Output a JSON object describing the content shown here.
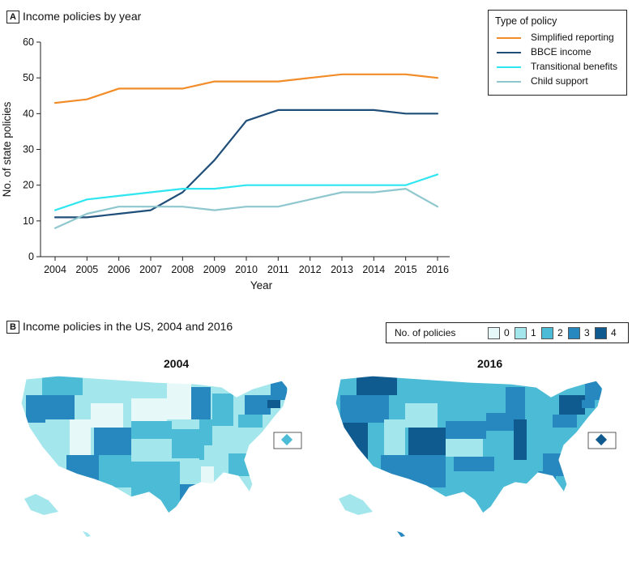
{
  "panel_a": {
    "letter": "A",
    "title": "Income policies by year"
  },
  "panel_b": {
    "letter": "B",
    "title": "Income policies in the US, 2004 and 2016"
  },
  "chart_data": {
    "type": "line",
    "title": "Income policies by year",
    "xlabel": "Year",
    "ylabel": "No. of state policies",
    "x": [
      2004,
      2005,
      2006,
      2007,
      2008,
      2009,
      2010,
      2011,
      2012,
      2013,
      2014,
      2015,
      2016
    ],
    "ylim": [
      0,
      60
    ],
    "yticks": [
      0,
      10,
      20,
      30,
      40,
      50,
      60
    ],
    "legend_title": "Type of policy",
    "legend_position": "top-right",
    "grid": false,
    "series": [
      {
        "name": "Simplified reporting",
        "color": "#F28C28",
        "values": [
          43,
          44,
          47,
          47,
          47,
          49,
          49,
          49,
          50,
          51,
          51,
          51,
          50
        ]
      },
      {
        "name": "BBCE income",
        "color": "#1F4E79",
        "values": [
          11,
          11,
          12,
          13,
          18,
          27,
          38,
          41,
          41,
          41,
          41,
          40,
          40
        ]
      },
      {
        "name": "Transitional benefits",
        "color": "#2FE6F0",
        "values": [
          13,
          16,
          17,
          18,
          19,
          19,
          20,
          20,
          20,
          20,
          20,
          20,
          23
        ]
      },
      {
        "name": "Child support",
        "color": "#8EC7CE",
        "values": [
          8,
          12,
          14,
          14,
          14,
          13,
          14,
          14,
          16,
          18,
          18,
          19,
          14
        ]
      }
    ]
  },
  "maps": {
    "legend_title": "No. of policies",
    "scale": [
      {
        "value": "0",
        "color": "#E6F8F8"
      },
      {
        "value": "1",
        "color": "#A3E6EC"
      },
      {
        "value": "2",
        "color": "#4BBBD6"
      },
      {
        "value": "3",
        "color": "#2688BE"
      },
      {
        "value": "4",
        "color": "#0F5A8E"
      }
    ],
    "left_year": "2004",
    "right_year": "2016"
  }
}
